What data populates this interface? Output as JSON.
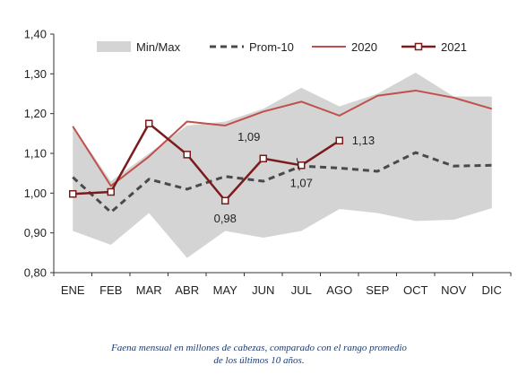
{
  "chart_data": {
    "type": "line",
    "categories": [
      "ENE",
      "FEB",
      "MAR",
      "ABR",
      "MAY",
      "JUN",
      "JUL",
      "AGO",
      "SEP",
      "OCT",
      "NOV",
      "DIC"
    ],
    "ylim": [
      0.8,
      1.4
    ],
    "yticks": [
      "0,80",
      "0,90",
      "1,00",
      "1,10",
      "1,20",
      "1,30",
      "1,40"
    ],
    "grid": false,
    "legend_position": "top",
    "band": {
      "name": "Min/Max",
      "min": [
        0.905,
        0.87,
        0.95,
        0.837,
        0.905,
        0.888,
        0.905,
        0.96,
        0.95,
        0.93,
        0.933,
        0.962
      ],
      "max": [
        1.17,
        1.03,
        1.1,
        1.17,
        1.18,
        1.212,
        1.265,
        1.218,
        1.25,
        1.303,
        1.243,
        1.243
      ],
      "color": "#d4d4d4"
    },
    "series": [
      {
        "name": "Prom-10",
        "values": [
          1.04,
          0.952,
          1.035,
          1.01,
          1.042,
          1.03,
          1.068,
          1.063,
          1.055,
          1.102,
          1.068,
          1.07
        ],
        "color": "#4a4a4a",
        "style": "dashed"
      },
      {
        "name": "2020",
        "values": [
          1.168,
          1.018,
          1.092,
          1.18,
          1.17,
          1.205,
          1.23,
          1.195,
          1.245,
          1.258,
          1.24,
          1.212
        ],
        "color": "#c0504d",
        "style": "solid"
      },
      {
        "name": "2021",
        "values": [
          0.998,
          1.003,
          1.175,
          1.097,
          0.981,
          1.087,
          1.07,
          1.132,
          null,
          null,
          null,
          null
        ],
        "color": "#7b1c1c",
        "style": "solid-markers"
      }
    ],
    "annotations": [
      {
        "text": "0,98",
        "category": "MAY",
        "value": 0.981,
        "placement": "below"
      },
      {
        "text": "1,09",
        "category": "JUN",
        "value": 1.087,
        "placement": "above-left"
      },
      {
        "text": "1,07",
        "category": "JUL",
        "value": 1.07,
        "placement": "below"
      },
      {
        "text": "1,13",
        "category": "AGO",
        "value": 1.132,
        "placement": "right"
      }
    ]
  },
  "caption": {
    "line1": "Faena mensual en millones de cabezas, comparado con el rango promedio",
    "line2": "de los últimos 10 años."
  }
}
